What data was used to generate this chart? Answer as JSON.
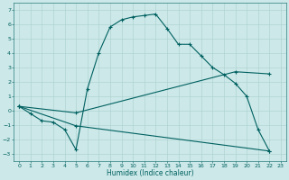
{
  "xlabel": "Humidex (Indice chaleur)",
  "ylabel": "",
  "bg_color": "#cce8e8",
  "line_color": "#006060",
  "grid_color": "#aacfcf",
  "xlim": [
    -0.5,
    23.5
  ],
  "ylim": [
    -3.5,
    7.5
  ],
  "yticks": [
    -3,
    -2,
    -1,
    0,
    1,
    2,
    3,
    4,
    5,
    6,
    7
  ],
  "xticks": [
    0,
    1,
    2,
    3,
    4,
    5,
    6,
    7,
    8,
    9,
    10,
    11,
    12,
    13,
    14,
    15,
    16,
    17,
    18,
    19,
    20,
    21,
    22,
    23
  ],
  "line1_x": [
    0,
    1,
    2,
    3,
    4,
    5,
    6,
    7,
    8,
    9,
    10,
    11,
    12,
    13,
    14,
    15,
    16,
    17,
    18,
    19,
    20,
    21,
    22
  ],
  "line1_y": [
    0.3,
    -0.2,
    -0.7,
    -0.8,
    -1.3,
    -2.7,
    1.5,
    4.0,
    5.8,
    6.3,
    6.5,
    6.6,
    6.7,
    5.7,
    4.6,
    4.6,
    3.8,
    3.0,
    2.5,
    1.9,
    1.0,
    -1.3,
    -2.8
  ],
  "line2_x": [
    0,
    5,
    19,
    22
  ],
  "line2_y": [
    0.3,
    -0.15,
    2.7,
    2.55
  ],
  "line3_x": [
    0,
    5,
    22
  ],
  "line3_y": [
    0.3,
    -1.05,
    -2.8
  ],
  "marker": "+",
  "markersize": 3,
  "markeredgewidth": 0.8,
  "linewidth": 0.8,
  "tick_labelsize": 4.5,
  "xlabel_fontsize": 5.5
}
